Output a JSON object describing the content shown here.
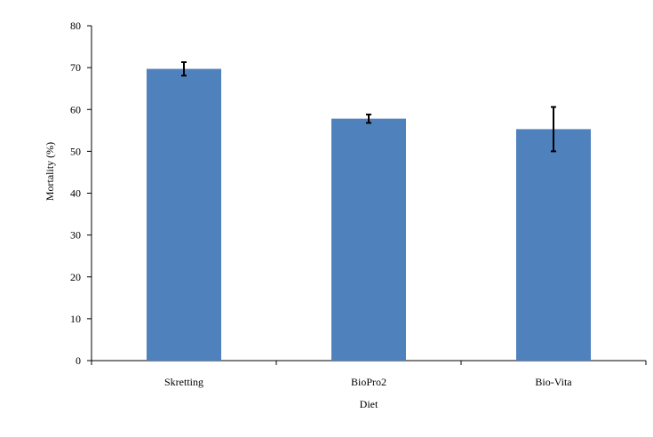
{
  "chart_data": {
    "type": "bar",
    "categories": [
      "Skretting",
      "BioPro2",
      "Bio-Vita"
    ],
    "values": [
      69.7,
      57.8,
      55.3
    ],
    "error_bars": [
      {
        "low": 68.1,
        "high": 71.3
      },
      {
        "low": 56.8,
        "high": 58.8
      },
      {
        "low": 50.0,
        "high": 60.6
      }
    ],
    "title": "",
    "xlabel": "Diet",
    "ylabel": "Mortality (%)",
    "ylim": [
      0,
      80
    ],
    "yticks": [
      0,
      10,
      20,
      30,
      40,
      50,
      60,
      70,
      80
    ],
    "grid": false,
    "legend": "none",
    "colors": {
      "bar": "#4f81bd",
      "axis": "#000000",
      "error_bar": "#000000"
    }
  }
}
